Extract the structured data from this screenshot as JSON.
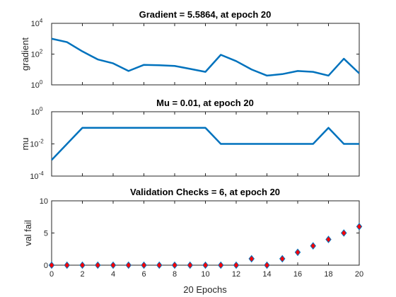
{
  "chart_data": [
    {
      "type": "line",
      "title": "Gradient = 5.5864, at epoch 20",
      "ylabel": "gradient",
      "yscale": "log",
      "ylim": [
        1,
        10000
      ],
      "xlim": [
        0,
        20
      ],
      "ytick_labels": [
        {
          "base": "10",
          "exp": "0"
        },
        {
          "base": "10",
          "exp": "2"
        },
        {
          "base": "10",
          "exp": "4"
        }
      ],
      "color": "#0072BD",
      "x": [
        0,
        1,
        2,
        3,
        4,
        5,
        6,
        7,
        8,
        9,
        10,
        11,
        12,
        13,
        14,
        15,
        16,
        17,
        18,
        19,
        20
      ],
      "y": [
        1000,
        600,
        150,
        45,
        25,
        8,
        20,
        19,
        17,
        11,
        7,
        90,
        35,
        10,
        4,
        5,
        8,
        7,
        4,
        50,
        5.5864
      ]
    },
    {
      "type": "line",
      "title": "Mu = 0.01, at epoch 20",
      "ylabel": "mu",
      "yscale": "log",
      "ylim": [
        0.0001,
        1
      ],
      "xlim": [
        0,
        20
      ],
      "ytick_labels": [
        {
          "base": "10",
          "exp": "-4"
        },
        {
          "base": "10",
          "exp": "-2"
        },
        {
          "base": "10",
          "exp": "0"
        }
      ],
      "color": "#0072BD",
      "x": [
        0,
        1,
        2,
        3,
        4,
        5,
        6,
        7,
        8,
        9,
        10,
        11,
        12,
        13,
        14,
        15,
        16,
        17,
        18,
        19,
        20
      ],
      "y": [
        0.001,
        0.01,
        0.1,
        0.1,
        0.1,
        0.1,
        0.1,
        0.1,
        0.1,
        0.1,
        0.1,
        0.01,
        0.01,
        0.01,
        0.01,
        0.01,
        0.01,
        0.01,
        0.1,
        0.01,
        0.01
      ]
    },
    {
      "type": "scatter",
      "title": "Validation Checks = 6, at epoch 20",
      "ylabel": "val fail",
      "xlabel": "20 Epochs",
      "ylim": [
        0,
        10
      ],
      "xlim": [
        0,
        20
      ],
      "yticks": [
        0,
        5,
        10
      ],
      "xticks": [
        0,
        2,
        4,
        6,
        8,
        10,
        12,
        14,
        16,
        18,
        20
      ],
      "marker": "diamond",
      "face_color": "#FF0000",
      "edge_color": "#0072BD",
      "x": [
        0,
        1,
        2,
        3,
        4,
        5,
        6,
        7,
        8,
        9,
        10,
        11,
        12,
        13,
        14,
        15,
        16,
        17,
        18,
        19,
        20
      ],
      "y": [
        0,
        0,
        0,
        0,
        0,
        0,
        0,
        0,
        0,
        0,
        0,
        0,
        0,
        1,
        0,
        1,
        2,
        3,
        4,
        5,
        6
      ]
    }
  ]
}
